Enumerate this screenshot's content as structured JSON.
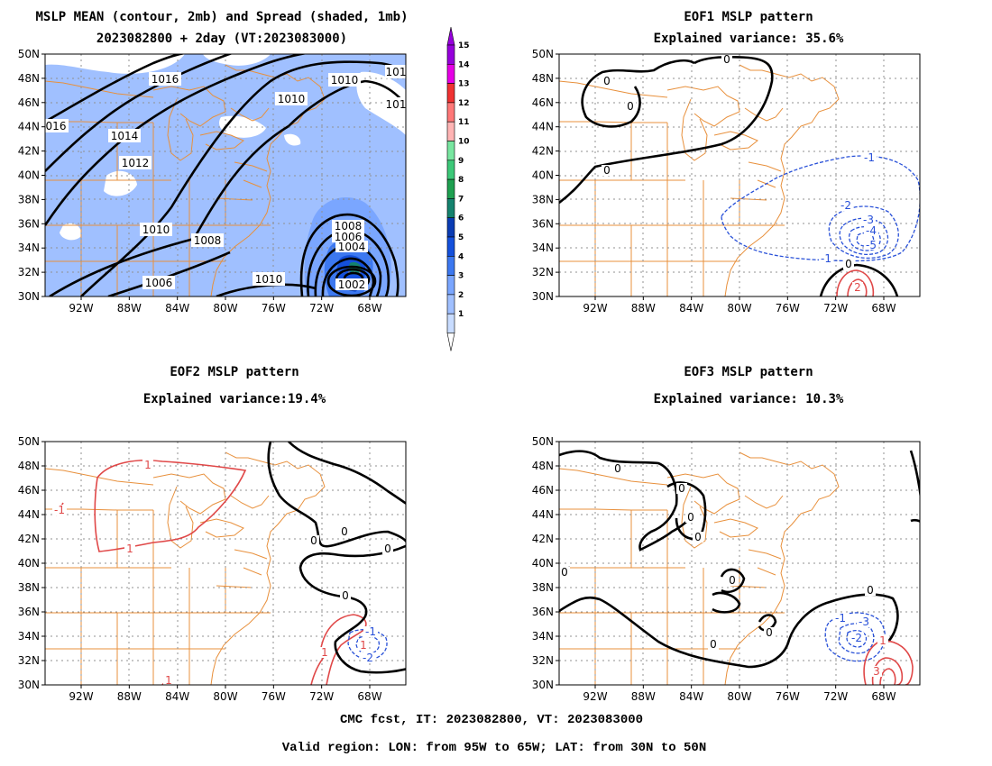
{
  "panels": [
    {
      "id": "mean",
      "title_lines": [
        "MSLP MEAN (contour, 2mb) and Spread (shaded, 1mb)",
        "2023082800 + 2day (VT:2023083000)"
      ],
      "has_shading": true
    },
    {
      "id": "eof1",
      "title_lines": [
        "EOF1 MSLP pattern",
        "Explained variance: 35.6%"
      ],
      "has_shading": false
    },
    {
      "id": "eof2",
      "title_lines": [
        "EOF2 MSLP pattern",
        "Explained variance:19.4%"
      ],
      "has_shading": false
    },
    {
      "id": "eof3",
      "title_lines": [
        "EOF3 MSLP pattern",
        "Explained variance: 10.3%"
      ],
      "has_shading": false
    }
  ],
  "axes": {
    "lon_range": [
      -95,
      -65
    ],
    "lat_range": [
      30,
      50
    ],
    "lon_ticks": [
      "92W",
      "88W",
      "84W",
      "80W",
      "76W",
      "72W",
      "68W"
    ],
    "lon_tick_values": [
      -92,
      -88,
      -84,
      -80,
      -76,
      -72,
      -68
    ],
    "lat_ticks": [
      "30N",
      "32N",
      "34N",
      "36N",
      "38N",
      "40N",
      "42N",
      "44N",
      "46N",
      "48N",
      "50N"
    ],
    "lat_tick_values": [
      30,
      32,
      34,
      36,
      38,
      40,
      42,
      44,
      46,
      48,
      50
    ]
  },
  "colorbar": {
    "labels": [
      "1",
      "2",
      "3",
      "4",
      "5",
      "6",
      "7",
      "8",
      "9",
      "10",
      "11",
      "12",
      "13",
      "14",
      "15"
    ],
    "colors": [
      "#c8dcff",
      "#a0c0ff",
      "#7aa6ff",
      "#3c78f0",
      "#1450dc",
      "#0a3cb4",
      "#14826e",
      "#1ea050",
      "#3cc878",
      "#78e6a0",
      "#ffb4b4",
      "#ff7878",
      "#f03232",
      "#e600e6",
      "#9600dc"
    ]
  },
  "contour_labels": {
    "mean": [
      "1016",
      "1014",
      "1012",
      "1010",
      "1010",
      "1010",
      "1008",
      "1006",
      "1010",
      "1008",
      "1006",
      "1004",
      "1002",
      "016",
      "101",
      "101"
    ],
    "eof1": [
      "0",
      "0",
      "0",
      "0",
      "0",
      "-1",
      "-2",
      "-3",
      "-4",
      "-5",
      "-1",
      "2"
    ],
    "eof2": [
      "1",
      "1",
      "1",
      "-1",
      "0",
      "0",
      "0",
      "0",
      "-1",
      "-2",
      "1",
      "1"
    ],
    "eof3": [
      "0",
      "0",
      "0",
      "0",
      "0",
      "0",
      "0",
      "0",
      "0",
      "-1",
      "-3",
      "-2",
      "1",
      "3"
    ]
  },
  "footer": {
    "line1": "CMC fcst, IT: 2023082800, VT: 2023083000",
    "line2": "Valid region: LON: from 95W to 65W; LAT: from 30N to 50N"
  },
  "colors": {
    "coast": "#e8903c",
    "grid": "#909090",
    "positive": "#e04848",
    "negative": "#2850d8",
    "contour": "#000000"
  }
}
